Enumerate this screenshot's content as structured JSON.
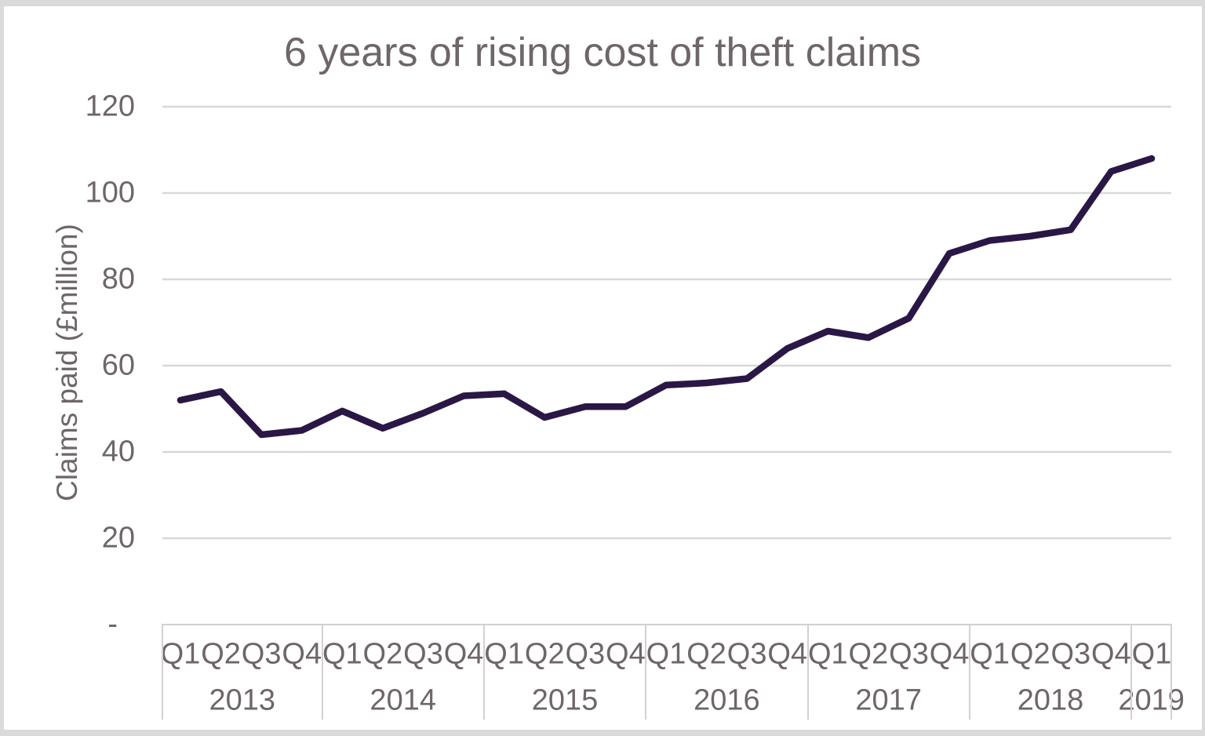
{
  "chart_data": {
    "type": "line",
    "title": "6 years of rising cost of theft claims",
    "ylabel": "Claims paid (£million)",
    "xlabel": "",
    "ylim": [
      0,
      120
    ],
    "ytick_labels": [
      "120",
      "100",
      "80",
      "60",
      "40",
      "20",
      "-"
    ],
    "ytick_values": [
      120,
      100,
      80,
      60,
      40,
      20,
      0
    ],
    "grid": "horizontal-only",
    "legend_position": "none",
    "x_axis": {
      "years": [
        {
          "label": "2013",
          "quarters": [
            "Q1",
            "Q2",
            "Q3",
            "Q4"
          ]
        },
        {
          "label": "2014",
          "quarters": [
            "Q1",
            "Q2",
            "Q3",
            "Q4"
          ]
        },
        {
          "label": "2015",
          "quarters": [
            "Q1",
            "Q2",
            "Q3",
            "Q4"
          ]
        },
        {
          "label": "2016",
          "quarters": [
            "Q1",
            "Q2",
            "Q3",
            "Q4"
          ]
        },
        {
          "label": "2017",
          "quarters": [
            "Q1",
            "Q2",
            "Q3",
            "Q4"
          ]
        },
        {
          "label": "2018",
          "quarters": [
            "Q1",
            "Q2",
            "Q3",
            "Q4"
          ]
        },
        {
          "label": "2019",
          "quarters": [
            "Q1"
          ]
        }
      ]
    },
    "series": [
      {
        "name": "Claims paid (£million)",
        "color": "#2a1745",
        "values": [
          52,
          54,
          44,
          45,
          49.5,
          45.5,
          49,
          53,
          53.5,
          48,
          50.5,
          50.5,
          55.5,
          56,
          57,
          64,
          68,
          66.5,
          71,
          86,
          89,
          90,
          91.5,
          105,
          108
        ]
      }
    ],
    "colors": {
      "line": "#2a1745",
      "grid": "#d9d8d9",
      "table_border": "#d2d0d2",
      "text": "#6e6669",
      "frame_border": "#dbdadb",
      "background": "#ffffff"
    }
  }
}
